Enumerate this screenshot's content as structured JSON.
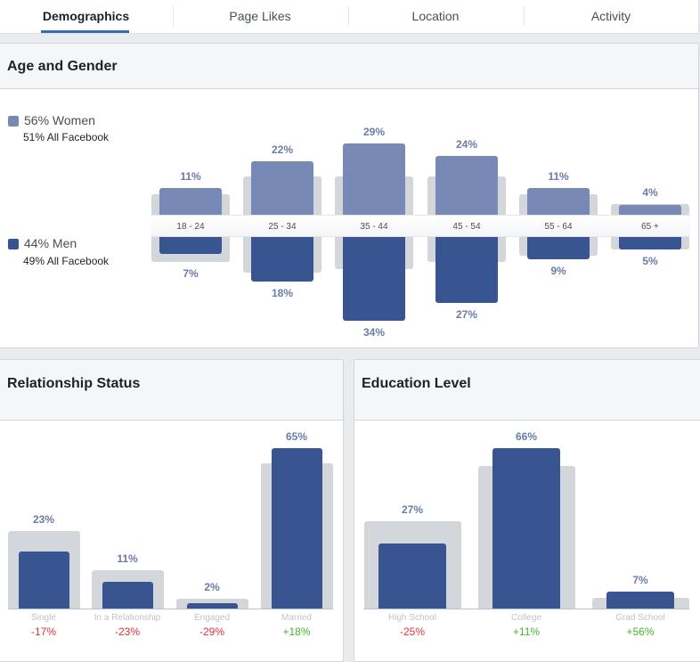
{
  "tabs": [
    {
      "label": "Demographics",
      "active": true
    },
    {
      "label": "Page Likes",
      "active": false
    },
    {
      "label": "Location",
      "active": false
    },
    {
      "label": "Activity",
      "active": false
    }
  ],
  "colors": {
    "women": "#7889b6",
    "men": "#385591",
    "background_bar": "#d3d6db",
    "value_label": "#6a7ca8",
    "positive": "#42b72a",
    "negative": "#e0303b",
    "accent": "#4267b2"
  },
  "age_gender": {
    "title": "Age and Gender",
    "women_legend": "56% Women",
    "women_all_facebook": "51% All Facebook",
    "men_legend": "44% Men",
    "men_all_facebook": "49% All Facebook"
  },
  "relationship": {
    "title": "Relationship Status"
  },
  "education": {
    "title": "Education Level"
  },
  "chart_data": [
    {
      "type": "bar",
      "title": "Age and Gender",
      "categories": [
        "18 - 24",
        "25 - 34",
        "35 - 44",
        "45 - 54",
        "55 - 64",
        "65 +"
      ],
      "series": [
        {
          "name": "Women",
          "values": [
            11,
            22,
            29,
            24,
            11,
            4
          ],
          "labels": [
            "11%",
            "22%",
            "29%",
            "24%",
            "11%",
            "4%"
          ],
          "all_facebook": [
            8.5,
            15.5,
            15.5,
            15.5,
            8.5,
            4.5
          ]
        },
        {
          "name": "Men",
          "values": [
            7,
            18,
            34,
            27,
            9,
            5
          ],
          "labels": [
            "7%",
            "18%",
            "34%",
            "27%",
            "9%",
            "5%"
          ],
          "all_facebook": [
            10,
            14.5,
            13,
            10,
            7.5,
            5
          ]
        }
      ],
      "unit": "%"
    },
    {
      "type": "bar",
      "title": "Relationship Status",
      "categories": [
        "Single",
        "In a Relationship",
        "Engaged",
        "Married"
      ],
      "values": [
        23,
        11,
        2,
        65
      ],
      "labels": [
        "23%",
        "11%",
        "2%",
        "65%"
      ],
      "all_facebook": [
        31.5,
        15.5,
        4,
        59
      ],
      "comparison": [
        "-17%",
        "-23%",
        "-29%",
        "+18%"
      ],
      "comparison_sign": [
        "neg",
        "neg",
        "neg",
        "pos"
      ],
      "unit": "%"
    },
    {
      "type": "bar",
      "title": "Education Level",
      "categories": [
        "High School",
        "College",
        "Grad School"
      ],
      "values": [
        27,
        66,
        7
      ],
      "labels": [
        "27%",
        "66%",
        "7%"
      ],
      "all_facebook": [
        36,
        59,
        4.5
      ],
      "comparison": [
        "-25%",
        "+11%",
        "+56%"
      ],
      "comparison_sign": [
        "neg",
        "pos",
        "pos"
      ],
      "unit": "%"
    }
  ]
}
